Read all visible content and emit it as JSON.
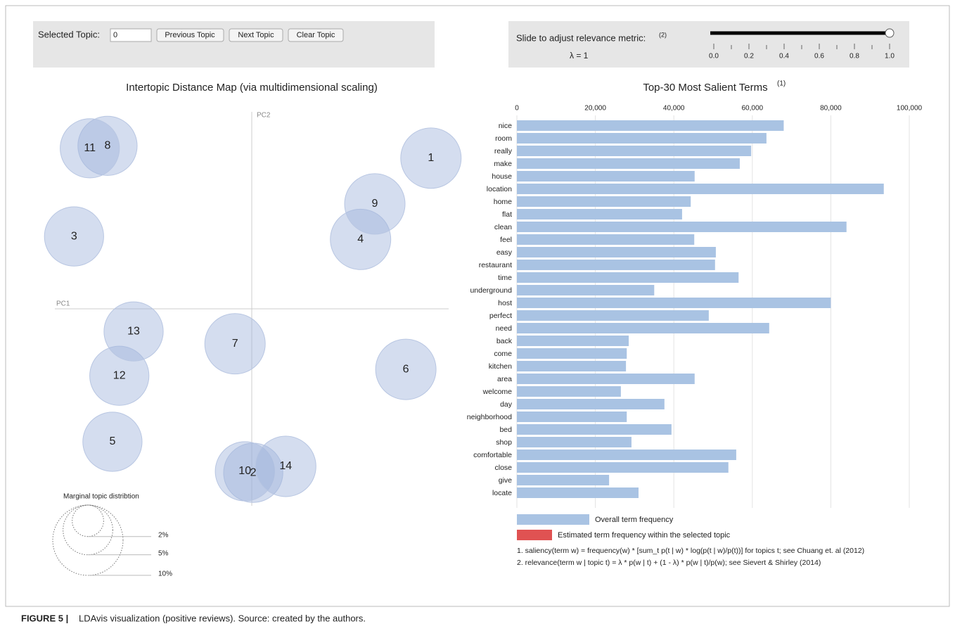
{
  "controls": {
    "selected_label": "Selected Topic:",
    "selected_value": "0",
    "buttons": [
      "Previous Topic",
      "Next Topic",
      "Clear Topic"
    ],
    "slider_label": "Slide to adjust relevance metric:",
    "slider_note": "(2)",
    "lambda_label": "λ = 1",
    "slider": {
      "value": 1,
      "lim": [
        0,
        1
      ],
      "ticks": [
        {
          "value": 0,
          "label": "0.0"
        },
        0.2,
        0.4,
        0.6,
        0.8,
        {
          "value": 1,
          "label": "1.0"
        }
      ],
      "minor_ticks": [
        0.1,
        0.3,
        0.5,
        0.7,
        0.9
      ]
    }
  },
  "chart_data": [
    {
      "type": "bubble",
      "title": "Intertopic Distance Map (via multidimensional scaling)",
      "x_label": "PC1",
      "y_label": "PC2",
      "labels": [
        "1",
        "2",
        "3",
        "4",
        "5",
        "6",
        "7",
        "8",
        "9",
        "10",
        "11",
        "12",
        "13",
        "14"
      ],
      "x": [
        0.364,
        0.003,
        -0.361,
        0.221,
        -0.283,
        0.313,
        -0.034,
        -0.293,
        0.25,
        -0.014,
        -0.329,
        -0.269,
        -0.24,
        0.069
      ],
      "y": [
        0.306,
        -0.333,
        0.147,
        0.141,
        -0.27,
        -0.123,
        -0.071,
        0.331,
        0.213,
        -0.33,
        0.326,
        -0.136,
        -0.046,
        -0.32
      ],
      "sizes": [
        7.4,
        7.1,
        7.1,
        7.4,
        7.1,
        7.4,
        7.4,
        7.1,
        7.4,
        7.1,
        7.1,
        7.1,
        7.1,
        7.4
      ],
      "xlim": [
        -0.4,
        0.4
      ],
      "ylim": [
        -0.4,
        0.4
      ],
      "color": "#9fb4dc",
      "size_legend": {
        "title": "Marginal topic distribtion",
        "values": [
          2,
          5,
          10
        ],
        "value_labels": [
          "2%",
          "5%",
          "10%"
        ]
      }
    },
    {
      "type": "hbar",
      "title": "Top-30 Most Salient Terms",
      "title_note": "(1)",
      "categories": [
        "nice",
        "room",
        "really",
        "make",
        "house",
        "location",
        "home",
        "flat",
        "clean",
        "feel",
        "easy",
        "restaurant",
        "time",
        "underground",
        "host",
        "perfect",
        "need",
        "back",
        "come",
        "kitchen",
        "area",
        "welcome",
        "day",
        "neighborhood",
        "bed",
        "shop",
        "comfortable",
        "close",
        "give",
        "locate"
      ],
      "series": [
        {
          "name": "Overall term frequency",
          "color": "#a9c3e3",
          "values": [
            68000,
            63600,
            59700,
            56800,
            45300,
            93500,
            44300,
            42100,
            84000,
            45200,
            50700,
            50500,
            56500,
            35000,
            80000,
            48900,
            64300,
            28500,
            28000,
            27800,
            45300,
            26500,
            37600,
            28000,
            39400,
            29200,
            55900,
            53900,
            23500,
            31000
          ]
        },
        {
          "name": "Estimated term frequency within the selected topic",
          "color": "#e05252"
        }
      ],
      "xlim": [
        0,
        100000
      ],
      "xticks": [
        0,
        {
          "value": 20000,
          "label": "20,000"
        },
        {
          "value": 40000,
          "label": "40,000"
        },
        {
          "value": 60000,
          "label": "60,000"
        },
        {
          "value": 80000,
          "label": "80,000"
        },
        {
          "value": 100000,
          "label": "100,000"
        }
      ],
      "grid": true,
      "notes": [
        "1. saliency(term w) = frequency(w) * [sum_t p(t | w) * log(p(t | w)/p(t))] for topics t; see Chuang et. al (2012)",
        "2. relevance(term w | topic t) = λ * p(w | t) + (1 - λ) * p(w | t)/p(w); see Sievert & Shirley (2014)"
      ]
    }
  ],
  "caption": {
    "label": "FIGURE 5 |",
    "text": "LDAvis visualization (positive reviews). Source: created by the authors."
  }
}
